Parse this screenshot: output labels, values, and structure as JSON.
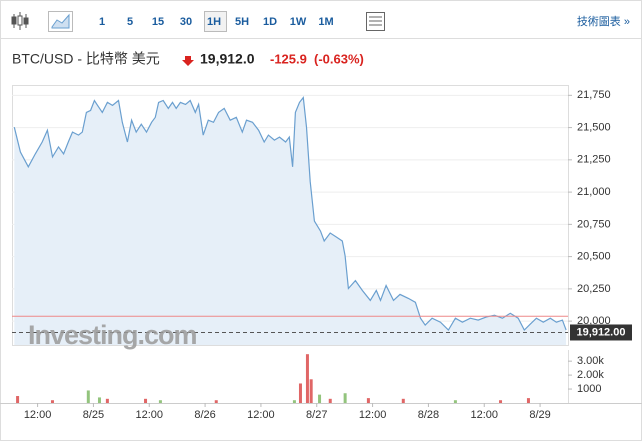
{
  "toolbar": {
    "intervals": [
      "1",
      "5",
      "15",
      "30",
      "1H",
      "5H",
      "1D",
      "1W",
      "1M"
    ],
    "active": "1H",
    "link": "技術圖表 »"
  },
  "header": {
    "title": "BTC/USD - 比特幣 美元",
    "price": "19,912.0",
    "change": "-125.9",
    "change_pct": "(-0.63%)"
  },
  "watermark": "Investing.com",
  "chart_data": [
    {
      "type": "line",
      "color": "#6a9fcf",
      "fill": "#e6eff8",
      "grid": true,
      "xlim": [
        -17.5,
        102
      ],
      "ylim": [
        19815,
        21830
      ],
      "yticks": [
        {
          "value": 20000,
          "label": "20,000"
        },
        {
          "value": 20250,
          "label": "20,250"
        },
        {
          "value": 20500,
          "label": "20,500"
        },
        {
          "value": 20750,
          "label": "20,750"
        },
        {
          "value": 21000,
          "label": "21,000"
        },
        {
          "value": 21250,
          "label": "21,250"
        },
        {
          "value": 21500,
          "label": "21,500"
        },
        {
          "value": 21750,
          "label": "21,750"
        }
      ],
      "last_price": {
        "value": 19912,
        "label": "19,912.00"
      },
      "reference_line": 20038,
      "x": [
        -17.0,
        -15.7,
        -14.0,
        -12.5,
        -11.0,
        -9.9,
        -8.8,
        -7.5,
        -6.4,
        -5.4,
        -4.5,
        -3.2,
        -2.4,
        -1.5,
        -0.6,
        0.2,
        0.9,
        1.9,
        3.0,
        4.1,
        5.4,
        6.2,
        7.3,
        8.2,
        9.2,
        10.3,
        11.4,
        12.5,
        13.3,
        14.0,
        15.0,
        16.1,
        17.0,
        17.8,
        18.7,
        19.8,
        20.8,
        21.9,
        22.6,
        23.6,
        24.7,
        25.8,
        26.9,
        28.1,
        29.4,
        30.7,
        32.0,
        32.9,
        34.2,
        35.5,
        36.7,
        37.6,
        38.9,
        40.0,
        41.3,
        42.1,
        42.8,
        43.4,
        44.3,
        45.1,
        45.8,
        46.6,
        47.5,
        48.8,
        49.6,
        50.9,
        52.2,
        53.5,
        54.1,
        54.8,
        56.3,
        57.8,
        59.5,
        60.8,
        61.7,
        62.9,
        64.5,
        65.9,
        67.7,
        69.2,
        70.3,
        71.3,
        72.8,
        74.6,
        76.3,
        77.8,
        79.3,
        81.0,
        82.7,
        84.4,
        86.2,
        87.9,
        89.6,
        91.3,
        92.6,
        93.9,
        95.2,
        96.7,
        98.2,
        99.5,
        100.8,
        101.6
      ],
      "values": [
        21503,
        21311,
        21196,
        21296,
        21388,
        21480,
        21273,
        21350,
        21296,
        21388,
        21465,
        21442,
        21465,
        21618,
        21633,
        21710,
        21672,
        21618,
        21695,
        21672,
        21710,
        21541,
        21388,
        21557,
        21465,
        21526,
        21465,
        21541,
        21580,
        21695,
        21710,
        21649,
        21695,
        21649,
        21695,
        21680,
        21710,
        21618,
        21680,
        21442,
        21557,
        21541,
        21618,
        21649,
        21557,
        21580,
        21465,
        21557,
        21541,
        21480,
        21388,
        21442,
        21403,
        21426,
        21388,
        21426,
        21196,
        21618,
        21695,
        21733,
        21503,
        21081,
        20775,
        20698,
        20621,
        20683,
        20652,
        20621,
        20506,
        20253,
        20314,
        20238,
        20161,
        20238,
        20161,
        20276,
        20161,
        20207,
        20176,
        20146,
        20023,
        19969,
        20023,
        19992,
        19931,
        20023,
        19992,
        20023,
        20008,
        20031,
        20046,
        20023,
        20061,
        20023,
        19931,
        19977,
        20023,
        19992,
        20023,
        19992,
        20008,
        19931
      ]
    },
    {
      "type": "bar",
      "xlim": [
        -17.5,
        102
      ],
      "ylim": [
        0,
        3800
      ],
      "xticks": [
        {
          "value": -12,
          "label": "12:00"
        },
        {
          "value": 0,
          "label": "8/25"
        },
        {
          "value": 12,
          "label": "12:00"
        },
        {
          "value": 24,
          "label": "8/26"
        },
        {
          "value": 36,
          "label": "12:00"
        },
        {
          "value": 48,
          "label": "8/27"
        },
        {
          "value": 60,
          "label": "12:00"
        },
        {
          "value": 72,
          "label": "8/28"
        },
        {
          "value": 84,
          "label": "12:00"
        },
        {
          "value": 96,
          "label": "8/29"
        }
      ],
      "yticks": [
        1000,
        {
          "value": 2000,
          "label": "2.00k"
        },
        {
          "value": 3000,
          "label": "3.00k"
        }
      ],
      "x": [
        -16.3,
        -8.8,
        -1.1,
        1.3,
        3.0,
        11.2,
        14.4,
        26.4,
        43.2,
        44.5,
        46.0,
        46.8,
        48.6,
        50.9,
        54.1,
        59.1,
        66.6,
        77.8,
        87.5,
        93.5
      ],
      "values": [
        500,
        200,
        900,
        400,
        300,
        300,
        200,
        200,
        200,
        1400,
        3500,
        1700,
        600,
        300,
        700,
        350,
        300,
        200,
        200,
        350
      ],
      "colors": [
        "#e06666",
        "#e06666",
        "#93c47d",
        "#93c47d",
        "#e06666",
        "#e06666",
        "#93c47d",
        "#e06666",
        "#93c47d",
        "#e06666",
        "#e06666",
        "#e06666",
        "#93c47d",
        "#e06666",
        "#93c47d",
        "#e06666",
        "#e06666",
        "#93c47d",
        "#e06666",
        "#e06666"
      ]
    }
  ]
}
